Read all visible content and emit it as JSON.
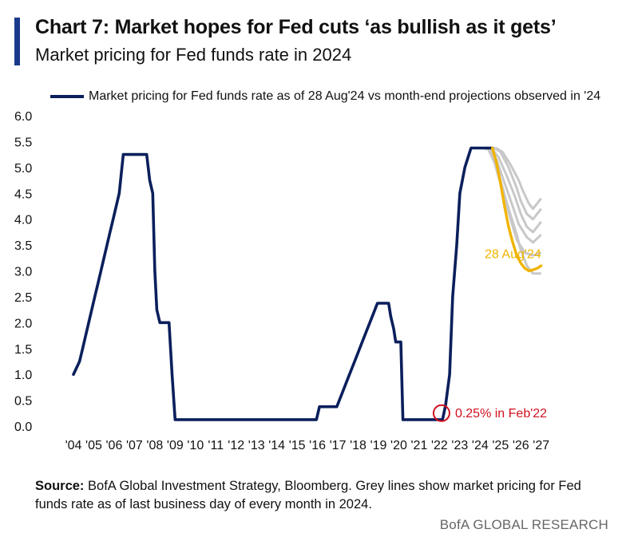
{
  "header": {
    "title": "Chart 7: Market hopes for Fed cuts ‘as bullish as it gets’",
    "subtitle": "Market pricing for Fed funds rate in 2024"
  },
  "legend": {
    "label": "Market pricing for Fed funds rate as of 28 Aug'24 vs month-end projections observed in '24"
  },
  "footer": {
    "source_label": "Source:",
    "source_text": "BofA Global Investment Strategy, Bloomberg. Grey lines show market pricing for Fed funds rate as of last business day of every month in 2024.",
    "brand": "BofA GLOBAL RESEARCH"
  },
  "colors": {
    "accent": "#1a3a8c",
    "main_series": "#0b1f5c",
    "latest_projection": "#f0b400",
    "month_end_projections": "#c8c8c8",
    "annotation_red": "#d0101e"
  },
  "chart_data": {
    "type": "line",
    "title": "Market pricing for Fed funds rate in 2024",
    "xlabel": "",
    "ylabel": "",
    "ylim": [
      0,
      6
    ],
    "xlim": [
      2004,
      2027.3
    ],
    "y_ticks": [
      "0.0",
      "0.5",
      "1.0",
      "1.5",
      "2.0",
      "2.5",
      "3.0",
      "3.5",
      "4.0",
      "4.5",
      "5.0",
      "5.5",
      "6.0"
    ],
    "x_ticks": [
      "'04",
      "'05",
      "'06",
      "'07",
      "'08",
      "'09",
      "'10",
      "'11",
      "'12",
      "'13",
      "'14",
      "'15",
      "'16",
      "'17",
      "'18",
      "'19",
      "'20",
      "'21",
      "'22",
      "'23",
      "'24",
      "'25",
      "'26",
      "'27"
    ],
    "grid": false,
    "legend_position": "top",
    "series": [
      {
        "name": "Market pricing for Fed funds rate as of 28 Aug'24 vs month-end projections observed in '24",
        "x": [
          2004.0,
          2004.3,
          2004.45,
          2004.6,
          2004.75,
          2004.9,
          2005.05,
          2005.2,
          2005.35,
          2005.5,
          2005.65,
          2005.8,
          2005.95,
          2006.1,
          2006.25,
          2006.45,
          2007.6,
          2007.75,
          2007.9,
          2008.0,
          2008.1,
          2008.25,
          2008.7,
          2008.85,
          2009.0,
          2015.95,
          2016.1,
          2016.95,
          2017.2,
          2017.45,
          2017.7,
          2017.95,
          2018.2,
          2018.45,
          2018.7,
          2018.95,
          2019.5,
          2019.6,
          2019.75,
          2019.85,
          2020.1,
          2020.2,
          2022.15,
          2022.3,
          2022.5,
          2022.65,
          2022.85,
          2023.0,
          2023.25,
          2023.55,
          2024.6
        ],
        "y": [
          1.0,
          1.25,
          1.5,
          1.75,
          2.0,
          2.25,
          2.5,
          2.75,
          3.0,
          3.25,
          3.5,
          3.75,
          4.0,
          4.25,
          4.5,
          5.25,
          5.25,
          4.75,
          4.5,
          3.0,
          2.25,
          2.0,
          2.0,
          1.0,
          0.125,
          0.125,
          0.375,
          0.375,
          0.625,
          0.875,
          1.125,
          1.375,
          1.625,
          1.875,
          2.125,
          2.375,
          2.375,
          2.125,
          1.875,
          1.625,
          1.625,
          0.125,
          0.125,
          0.4,
          1.0,
          2.5,
          3.5,
          4.5,
          5.0,
          5.375,
          5.375
        ]
      },
      {
        "name": "28 Aug'24",
        "x": [
          2024.6,
          2024.8,
          2025.0,
          2025.2,
          2025.4,
          2025.6,
          2025.8,
          2026.0,
          2026.2,
          2026.4,
          2026.6,
          2026.8,
          2027.0
        ],
        "y": [
          5.375,
          5.1,
          4.7,
          4.25,
          3.85,
          3.55,
          3.3,
          3.15,
          3.05,
          3.0,
          3.02,
          3.05,
          3.1
        ]
      }
    ],
    "projections_observed_in_2024": [
      {
        "x": [
          2024.0,
          2024.3,
          2024.6,
          2025.0,
          2025.4,
          2025.8,
          2026.0,
          2026.3,
          2026.6,
          2027.0
        ],
        "y": [
          5.375,
          5.375,
          5.3,
          4.75,
          4.2,
          3.7,
          3.4,
          3.1,
          2.95,
          2.95
        ]
      },
      {
        "x": [
          2024.1,
          2024.4,
          2024.7,
          2025.1,
          2025.5,
          2025.8,
          2026.2,
          2026.6,
          2027.0
        ],
        "y": [
          5.375,
          5.35,
          5.1,
          4.55,
          4.0,
          3.6,
          3.35,
          3.3,
          3.35
        ]
      },
      {
        "x": [
          2024.2,
          2024.5,
          2024.8,
          2025.2,
          2025.6,
          2025.9,
          2026.3,
          2026.6,
          2027.0
        ],
        "y": [
          5.375,
          5.35,
          5.15,
          4.7,
          4.25,
          3.9,
          3.65,
          3.55,
          3.7
        ]
      },
      {
        "x": [
          2024.3,
          2024.6,
          2024.9,
          2025.3,
          2025.7,
          2026.0,
          2026.3,
          2026.6,
          2027.0
        ],
        "y": [
          5.375,
          5.35,
          5.2,
          4.85,
          4.45,
          4.1,
          3.85,
          3.75,
          3.95
        ]
      },
      {
        "x": [
          2024.4,
          2024.7,
          2025.0,
          2025.4,
          2025.8,
          2026.0,
          2026.3,
          2026.6,
          2027.0
        ],
        "y": [
          5.375,
          5.37,
          5.3,
          5.0,
          4.6,
          4.35,
          4.1,
          4.0,
          4.2
        ]
      },
      {
        "x": [
          2024.5,
          2024.8,
          2025.1,
          2025.5,
          2025.9,
          2026.1,
          2026.4,
          2026.6,
          2027.0
        ],
        "y": [
          5.375,
          5.37,
          5.3,
          5.05,
          4.75,
          4.55,
          4.3,
          4.2,
          4.4
        ]
      }
    ],
    "annotations": [
      {
        "text": "28 Aug'24",
        "x": 2027.0,
        "y": 3.25,
        "color": "#f0b400"
      },
      {
        "text": "0.25% in Feb'22",
        "x": 2022.1,
        "y": 0.25,
        "color": "#d0101e",
        "marker": "circle"
      }
    ]
  }
}
